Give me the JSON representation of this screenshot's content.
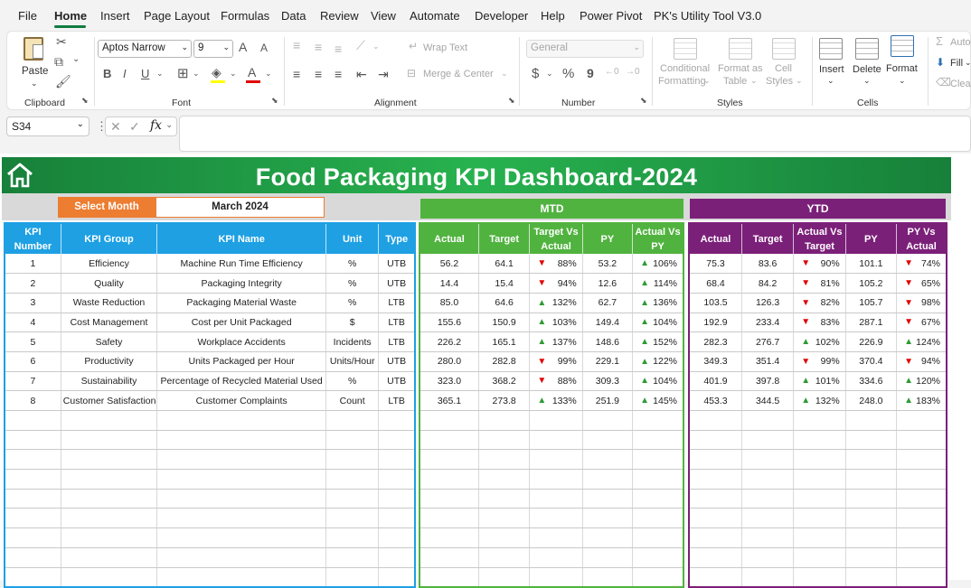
{
  "menu": {
    "tabs": [
      "File",
      "Home",
      "Insert",
      "Page Layout",
      "Formulas",
      "Data",
      "Review",
      "View",
      "Automate",
      "Developer",
      "Help",
      "Power Pivot",
      "PK's Utility Tool V3.0"
    ],
    "active": "Home"
  },
  "ribbon": {
    "clipboard": {
      "paste": "Paste",
      "label": "Clipboard"
    },
    "font": {
      "name": "Aptos Narrow",
      "size": "9",
      "label": "Font",
      "bold": "B",
      "italic": "I",
      "underline": "U",
      "grow": "A",
      "shrink": "A",
      "color_letter": "A"
    },
    "alignment": {
      "wrap": "Wrap Text",
      "merge": "Merge & Center",
      "label": "Alignment"
    },
    "number": {
      "format": "General",
      "currency": "$",
      "percent": "%",
      "comma": "9",
      "label": "Number"
    },
    "styles": {
      "conditional": [
        "Conditional",
        "Formatting"
      ],
      "format_as": [
        "Format as",
        "Table"
      ],
      "cell": [
        "Cell",
        "Styles"
      ],
      "label": "Styles"
    },
    "cells": {
      "insert": "Insert",
      "delete": "Delete",
      "format": "Format",
      "label": "Cells"
    },
    "editing": {
      "autosum": "Auto",
      "fill": "Fill",
      "clear": "Clea"
    }
  },
  "formula_bar": {
    "cell_ref": "S34",
    "fx": "fx",
    "formula": ""
  },
  "dashboard": {
    "title": "Food Packaging KPI Dashboard-2024",
    "select_month_label": "Select Month",
    "selected_month": "March 2024",
    "mtd_label": "MTD",
    "ytd_label": "YTD",
    "kpi_headers": [
      "KPI Number",
      "KPI Group",
      "KPI Name",
      "Unit",
      "Type"
    ],
    "mtd_headers": [
      "Actual",
      "Target",
      "Target Vs Actual",
      "PY",
      "Actual Vs PY"
    ],
    "ytd_headers": [
      "Actual",
      "Target",
      "Actual Vs Target",
      "PY",
      "PY Vs Actual"
    ],
    "colors": {
      "banner": "#22a547",
      "kpi": "#1ea0e3",
      "mtd": "#51b33f",
      "ytd": "#7b2079",
      "select": "#ed7d31",
      "up": "#2e9b34",
      "down": "#e00000"
    },
    "rows": [
      {
        "num": "1",
        "group": "Efficiency",
        "name": "Machine Run Time Efficiency",
        "unit": "%",
        "type": "UTB",
        "mtd": {
          "actual": "56.2",
          "target": "64.1",
          "tva": "88%",
          "tva_dir": "down",
          "py": "53.2",
          "avp": "106%",
          "avp_dir": "up"
        },
        "ytd": {
          "actual": "75.3",
          "target": "83.6",
          "avt": "90%",
          "avt_dir": "down",
          "py": "101.1",
          "pva": "74%",
          "pva_dir": "down"
        }
      },
      {
        "num": "2",
        "group": "Quality",
        "name": "Packaging Integrity",
        "unit": "%",
        "type": "UTB",
        "mtd": {
          "actual": "14.4",
          "target": "15.4",
          "tva": "94%",
          "tva_dir": "down",
          "py": "12.6",
          "avp": "114%",
          "avp_dir": "up"
        },
        "ytd": {
          "actual": "68.4",
          "target": "84.2",
          "avt": "81%",
          "avt_dir": "down",
          "py": "105.2",
          "pva": "65%",
          "pva_dir": "down"
        }
      },
      {
        "num": "3",
        "group": "Waste Reduction",
        "name": "Packaging Material Waste",
        "unit": "%",
        "type": "LTB",
        "mtd": {
          "actual": "85.0",
          "target": "64.6",
          "tva": "132%",
          "tva_dir": "up",
          "py": "62.7",
          "avp": "136%",
          "avp_dir": "up"
        },
        "ytd": {
          "actual": "103.5",
          "target": "126.3",
          "avt": "82%",
          "avt_dir": "down",
          "py": "105.7",
          "pva": "98%",
          "pva_dir": "down"
        }
      },
      {
        "num": "4",
        "group": "Cost Management",
        "name": "Cost per Unit Packaged",
        "unit": "$",
        "type": "LTB",
        "mtd": {
          "actual": "155.6",
          "target": "150.9",
          "tva": "103%",
          "tva_dir": "up",
          "py": "149.4",
          "avp": "104%",
          "avp_dir": "up"
        },
        "ytd": {
          "actual": "192.9",
          "target": "233.4",
          "avt": "83%",
          "avt_dir": "down",
          "py": "287.1",
          "pva": "67%",
          "pva_dir": "down"
        }
      },
      {
        "num": "5",
        "group": "Safety",
        "name": "Workplace Accidents",
        "unit": "Incidents",
        "type": "LTB",
        "mtd": {
          "actual": "226.2",
          "target": "165.1",
          "tva": "137%",
          "tva_dir": "up",
          "py": "148.6",
          "avp": "152%",
          "avp_dir": "up"
        },
        "ytd": {
          "actual": "282.3",
          "target": "276.7",
          "avt": "102%",
          "avt_dir": "up",
          "py": "226.9",
          "pva": "124%",
          "pva_dir": "up"
        }
      },
      {
        "num": "6",
        "group": "Productivity",
        "name": "Units Packaged per Hour",
        "unit": "Units/Hour",
        "type": "UTB",
        "mtd": {
          "actual": "280.0",
          "target": "282.8",
          "tva": "99%",
          "tva_dir": "down",
          "py": "229.1",
          "avp": "122%",
          "avp_dir": "up"
        },
        "ytd": {
          "actual": "349.3",
          "target": "351.4",
          "avt": "99%",
          "avt_dir": "down",
          "py": "370.4",
          "pva": "94%",
          "pva_dir": "down"
        }
      },
      {
        "num": "7",
        "group": "Sustainability",
        "name": "Percentage of Recycled Material Used",
        "unit": "%",
        "type": "UTB",
        "mtd": {
          "actual": "323.0",
          "target": "368.2",
          "tva": "88%",
          "tva_dir": "down",
          "py": "309.3",
          "avp": "104%",
          "avp_dir": "up"
        },
        "ytd": {
          "actual": "401.9",
          "target": "397.8",
          "avt": "101%",
          "avt_dir": "up",
          "py": "334.6",
          "pva": "120%",
          "pva_dir": "up"
        }
      },
      {
        "num": "8",
        "group": "Customer Satisfaction",
        "name": "Customer Complaints",
        "unit": "Count",
        "type": "LTB",
        "mtd": {
          "actual": "365.1",
          "target": "273.8",
          "tva": "133%",
          "tva_dir": "up",
          "py": "251.9",
          "avp": "145%",
          "avp_dir": "up"
        },
        "ytd": {
          "actual": "453.3",
          "target": "344.5",
          "avt": "132%",
          "avt_dir": "up",
          "py": "248.0",
          "pva": "183%",
          "pva_dir": "up"
        }
      }
    ]
  }
}
